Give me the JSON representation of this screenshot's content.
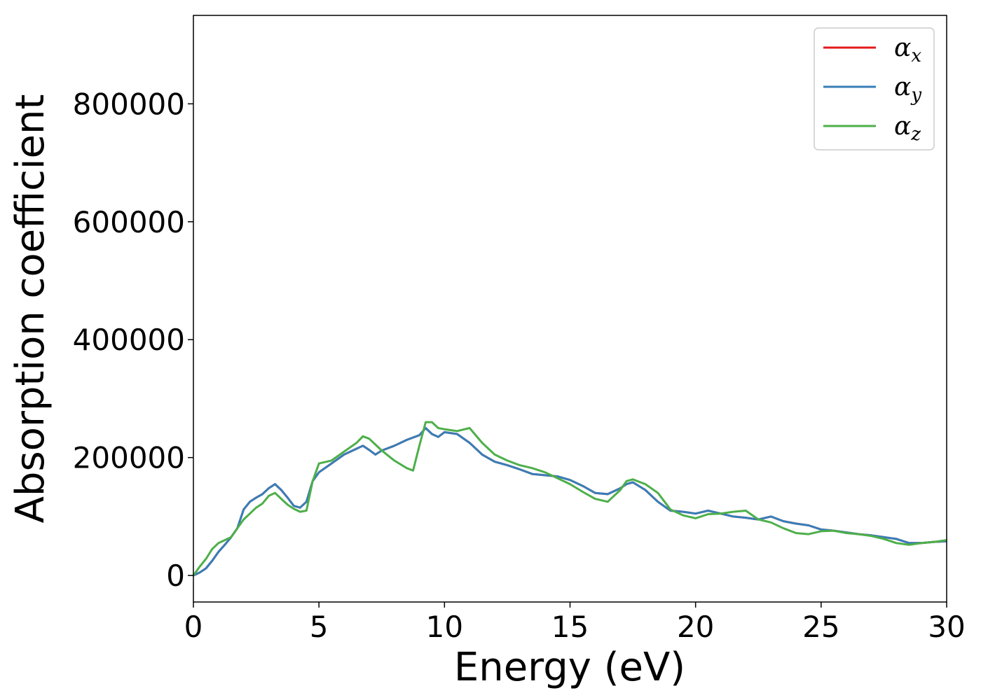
{
  "chart_data": {
    "type": "line",
    "title": "",
    "xlabel": "Energy (eV)",
    "ylabel": "Absorption coefficient",
    "xlim": [
      0,
      30
    ],
    "ylim": [
      -45000,
      950000
    ],
    "xticks": [
      0,
      5,
      10,
      15,
      20,
      25,
      30
    ],
    "yticks": [
      0,
      200000,
      400000,
      600000,
      800000
    ],
    "grid": false,
    "legend_position": "top-right",
    "series": [
      {
        "name": "αx",
        "base": "α",
        "sub": "x",
        "color": "#e41a1c",
        "x": [
          0,
          0.25,
          0.5,
          0.75,
          1,
          1.25,
          1.5,
          1.75,
          2,
          2.25,
          2.5,
          2.75,
          3,
          3.25,
          3.5,
          3.75,
          4,
          4.25,
          4.5,
          4.75,
          5,
          5.5,
          6,
          6.5,
          6.75,
          7,
          7.25,
          7.5,
          8,
          8.5,
          9,
          9.25,
          9.5,
          9.75,
          10,
          10.5,
          11,
          11.5,
          12,
          12.5,
          13,
          13.5,
          14,
          14.5,
          15,
          15.5,
          16,
          16.5,
          17,
          17.25,
          17.5,
          18,
          18.5,
          19,
          19.5,
          20,
          20.5,
          21,
          21.5,
          22,
          22.5,
          23,
          23.5,
          24,
          24.5,
          25,
          25.5,
          26,
          26.5,
          27,
          27.5,
          28,
          28.5,
          29,
          29.5,
          30
        ],
        "y": [
          0,
          5000,
          12000,
          25000,
          40000,
          52000,
          65000,
          80000,
          112000,
          125000,
          132000,
          138000,
          148000,
          155000,
          145000,
          132000,
          118000,
          115000,
          125000,
          160000,
          175000,
          190000,
          205000,
          215000,
          220000,
          213000,
          205000,
          212000,
          220000,
          230000,
          238000,
          250000,
          240000,
          235000,
          243000,
          240000,
          225000,
          205000,
          193000,
          187000,
          180000,
          172000,
          170000,
          168000,
          162000,
          152000,
          140000,
          138000,
          148000,
          155000,
          158000,
          145000,
          125000,
          110000,
          108000,
          105000,
          110000,
          105000,
          100000,
          98000,
          95000,
          100000,
          92000,
          88000,
          85000,
          78000,
          76000,
          73000,
          70000,
          68000,
          65000,
          62000,
          55000,
          55000,
          57000,
          58000
        ]
      },
      {
        "name": "αy",
        "base": "α",
        "sub": "y",
        "color": "#377eb8",
        "x": [
          0,
          0.25,
          0.5,
          0.75,
          1,
          1.25,
          1.5,
          1.75,
          2,
          2.25,
          2.5,
          2.75,
          3,
          3.25,
          3.5,
          3.75,
          4,
          4.25,
          4.5,
          4.75,
          5,
          5.5,
          6,
          6.5,
          6.75,
          7,
          7.25,
          7.5,
          8,
          8.5,
          9,
          9.25,
          9.5,
          9.75,
          10,
          10.5,
          11,
          11.5,
          12,
          12.5,
          13,
          13.5,
          14,
          14.5,
          15,
          15.5,
          16,
          16.5,
          17,
          17.25,
          17.5,
          18,
          18.5,
          19,
          19.5,
          20,
          20.5,
          21,
          21.5,
          22,
          22.5,
          23,
          23.5,
          24,
          24.5,
          25,
          25.5,
          26,
          26.5,
          27,
          27.5,
          28,
          28.5,
          29,
          29.5,
          30
        ],
        "y": [
          0,
          5000,
          12000,
          25000,
          40000,
          52000,
          65000,
          80000,
          112000,
          125000,
          132000,
          138000,
          148000,
          155000,
          145000,
          132000,
          118000,
          115000,
          125000,
          160000,
          175000,
          190000,
          205000,
          215000,
          220000,
          213000,
          205000,
          212000,
          220000,
          230000,
          238000,
          250000,
          240000,
          235000,
          243000,
          240000,
          225000,
          205000,
          193000,
          187000,
          180000,
          172000,
          170000,
          168000,
          162000,
          152000,
          140000,
          138000,
          148000,
          155000,
          158000,
          145000,
          125000,
          110000,
          108000,
          105000,
          110000,
          105000,
          100000,
          98000,
          95000,
          100000,
          92000,
          88000,
          85000,
          78000,
          76000,
          73000,
          70000,
          68000,
          65000,
          62000,
          55000,
          55000,
          57000,
          58000
        ]
      },
      {
        "name": "αz",
        "base": "α",
        "sub": "z",
        "color": "#4daf4a",
        "x": [
          0,
          0.25,
          0.5,
          0.75,
          1,
          1.25,
          1.5,
          1.75,
          2,
          2.25,
          2.5,
          2.75,
          3,
          3.25,
          3.5,
          3.75,
          4,
          4.25,
          4.5,
          4.75,
          5,
          5.5,
          6,
          6.5,
          6.75,
          7,
          7.25,
          7.5,
          8,
          8.5,
          8.75,
          9,
          9.25,
          9.5,
          9.75,
          10,
          10.5,
          11,
          11.5,
          12,
          12.5,
          13,
          13.5,
          14,
          14.5,
          15,
          15.5,
          16,
          16.5,
          17,
          17.25,
          17.5,
          18,
          18.5,
          19,
          19.5,
          20,
          20.5,
          21,
          21.5,
          22,
          22.5,
          23,
          23.5,
          24,
          24.5,
          25,
          25.5,
          26,
          26.5,
          27,
          27.5,
          28,
          28.5,
          29,
          29.5,
          30
        ],
        "y": [
          0,
          15000,
          28000,
          45000,
          55000,
          60000,
          65000,
          80000,
          95000,
          105000,
          115000,
          122000,
          135000,
          140000,
          130000,
          120000,
          113000,
          108000,
          110000,
          160000,
          190000,
          195000,
          210000,
          225000,
          236000,
          232000,
          222000,
          212000,
          195000,
          182000,
          178000,
          220000,
          260000,
          260000,
          250000,
          248000,
          245000,
          250000,
          225000,
          205000,
          195000,
          187000,
          182000,
          175000,
          165000,
          155000,
          142000,
          130000,
          125000,
          145000,
          160000,
          163000,
          155000,
          140000,
          112000,
          102000,
          97000,
          104000,
          105000,
          108000,
          110000,
          95000,
          90000,
          80000,
          72000,
          70000,
          75000,
          76000,
          72000,
          70000,
          67000,
          62000,
          55000,
          52000,
          55000,
          57000,
          60000
        ]
      }
    ]
  }
}
